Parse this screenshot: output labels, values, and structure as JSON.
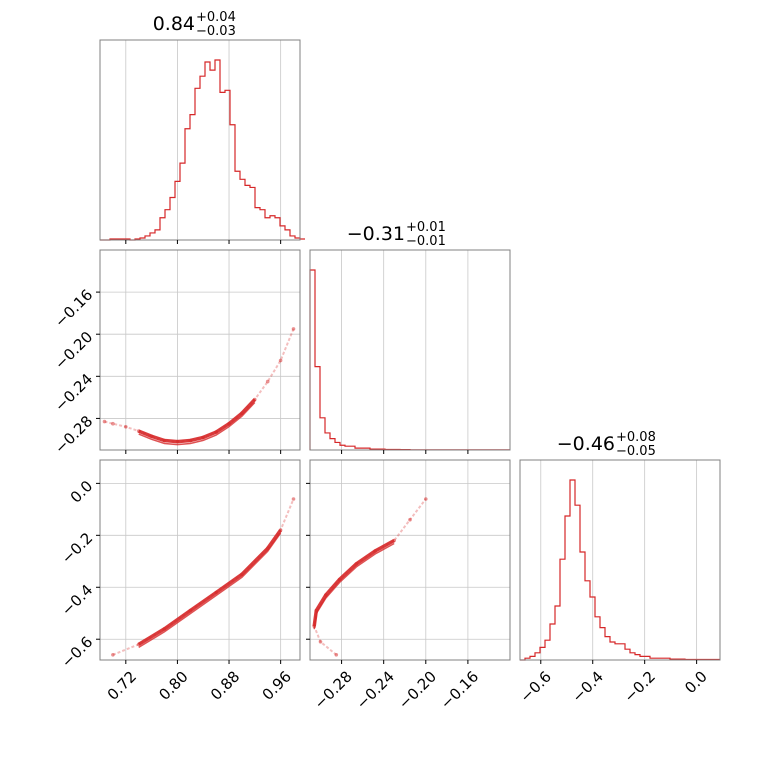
{
  "chart_data": {
    "type": "corner",
    "color": "#d62728",
    "parameters": [
      {
        "title": {
          "median": "0.84",
          "plus": "+0.04",
          "minus": "−0.03"
        },
        "range": [
          0.68,
          0.99
        ],
        "ticks": [
          0.72,
          0.8,
          0.88,
          0.96
        ],
        "tick_labels": [
          "0.72",
          "0.80",
          "0.88",
          "0.96"
        ],
        "hist_start": 0.68,
        "hist_step": 0.00775,
        "hist_counts": [
          0,
          0,
          0.5,
          0.5,
          0.5,
          0.5,
          0,
          0.5,
          1,
          2,
          3.5,
          5,
          11,
          15,
          21,
          29,
          38,
          55,
          62,
          75,
          81,
          88,
          84,
          89,
          73,
          74,
          57,
          34,
          30,
          27,
          26,
          16,
          15,
          11,
          12,
          11,
          7,
          5,
          2,
          1,
          0.5
        ]
      },
      {
        "title": {
          "median": "−0.31",
          "plus": "+0.01",
          "minus": "−0.01"
        },
        "range": [
          -0.31,
          -0.12
        ],
        "ticks": [
          -0.28,
          -0.24,
          -0.2,
          -0.16
        ],
        "tick_labels": [
          "−0.28",
          "−0.24",
          "−0.20",
          "−0.16"
        ],
        "hist_start": -0.31,
        "hist_step": 0.00475,
        "hist_counts": [
          95,
          44,
          17,
          9,
          6,
          4,
          2.5,
          2,
          2,
          1,
          1,
          1,
          0.5,
          0.5,
          0.5,
          0.3,
          0.3,
          0.3,
          0.2,
          0.2,
          0.1,
          0.1,
          0.1,
          0.1,
          0.1,
          0.1,
          0.1,
          0.1,
          0.1,
          0.1,
          0.1,
          0.1,
          0.1,
          0.1,
          0.1,
          0.1,
          0.1,
          0.1,
          0.1,
          0.1
        ]
      },
      {
        "title": {
          "median": "−0.46",
          "plus": "+0.08",
          "minus": "−0.05"
        },
        "range": [
          -0.68,
          0.09
        ],
        "ticks": [
          -0.6,
          -0.4,
          -0.2,
          0.0
        ],
        "tick_labels": [
          "−0.6",
          "−0.4",
          "−0.2",
          "0.0"
        ],
        "hist_start": -0.68,
        "hist_step": 0.01925,
        "hist_counts": [
          0,
          1,
          2,
          4,
          7,
          11,
          20,
          30,
          56,
          80,
          100,
          86,
          60,
          44,
          35,
          24,
          18,
          13,
          10,
          9,
          9,
          6,
          4,
          3,
          2,
          2,
          1,
          1,
          1,
          1,
          0.5,
          0.5,
          0.5,
          0.3,
          0.3,
          0.3,
          0.3,
          0.3,
          0.3,
          0.3
        ]
      }
    ],
    "y_axes": {
      "row1": {
        "range": [
          -0.31,
          -0.12
        ],
        "ticks": [
          -0.28,
          -0.24,
          -0.2,
          -0.16
        ],
        "tick_labels": [
          "−0.28",
          "−0.24",
          "−0.20",
          "−0.16"
        ]
      },
      "row2": {
        "range": [
          -0.68,
          0.09
        ],
        "ticks": [
          -0.6,
          -0.4,
          -0.2,
          0.0
        ],
        "tick_labels": [
          "−0.6",
          "−0.4",
          "−0.2",
          "0.0"
        ]
      }
    },
    "grid": true,
    "pairs": [
      {
        "name": "p1-vs-p2",
        "x_param": 0,
        "y_param": 1,
        "points": [
          [
            0.687,
            -0.283
          ],
          [
            0.7,
            -0.285
          ],
          [
            0.72,
            -0.288
          ],
          [
            0.74,
            -0.292
          ],
          [
            0.76,
            -0.297
          ],
          [
            0.78,
            -0.301
          ],
          [
            0.8,
            -0.302
          ],
          [
            0.82,
            -0.301
          ],
          [
            0.84,
            -0.298
          ],
          [
            0.86,
            -0.293
          ],
          [
            0.88,
            -0.285
          ],
          [
            0.9,
            -0.275
          ],
          [
            0.92,
            -0.262
          ],
          [
            0.94,
            -0.245
          ],
          [
            0.96,
            -0.225
          ],
          [
            0.98,
            -0.195
          ]
        ]
      },
      {
        "name": "p1-vs-p3",
        "x_param": 0,
        "y_param": 2,
        "points": [
          [
            0.7,
            -0.66
          ],
          [
            0.74,
            -0.62
          ],
          [
            0.78,
            -0.56
          ],
          [
            0.82,
            -0.49
          ],
          [
            0.86,
            -0.42
          ],
          [
            0.9,
            -0.35
          ],
          [
            0.94,
            -0.25
          ],
          [
            0.96,
            -0.18
          ],
          [
            0.98,
            -0.06
          ]
        ]
      },
      {
        "name": "p2-vs-p3",
        "x_param": 1,
        "y_param": 2,
        "points": [
          [
            -0.285,
            -0.66
          ],
          [
            -0.3,
            -0.61
          ],
          [
            -0.306,
            -0.55
          ],
          [
            -0.304,
            -0.49
          ],
          [
            -0.295,
            -0.43
          ],
          [
            -0.282,
            -0.37
          ],
          [
            -0.266,
            -0.31
          ],
          [
            -0.248,
            -0.26
          ],
          [
            -0.23,
            -0.22
          ],
          [
            -0.215,
            -0.14
          ],
          [
            -0.2,
            -0.06
          ]
        ]
      }
    ]
  }
}
